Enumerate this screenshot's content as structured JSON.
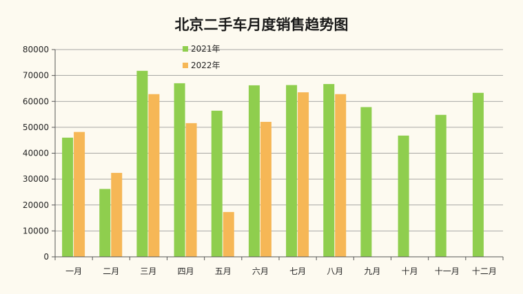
{
  "chart_data": {
    "type": "bar",
    "title": "北京二手车月度销售趋势图",
    "xlabel": "",
    "ylabel": "",
    "categories": [
      "一月",
      "二月",
      "三月",
      "四月",
      "五月",
      "六月",
      "七月",
      "八月",
      "九月",
      "十月",
      "十一月",
      "十二月"
    ],
    "series": [
      {
        "name": "2021年",
        "color": "#8fce4e",
        "values": [
          46000,
          26200,
          71800,
          67000,
          56400,
          66200,
          66300,
          66700,
          57800,
          46800,
          54800,
          63300
        ]
      },
      {
        "name": "2022年",
        "color": "#f6b756",
        "values": [
          48200,
          32400,
          62800,
          51600,
          17300,
          52100,
          63500,
          62800,
          null,
          null,
          null,
          null
        ]
      }
    ],
    "ylim": [
      0,
      80000
    ],
    "yticks": [
      0,
      10000,
      20000,
      30000,
      40000,
      50000,
      60000,
      70000,
      80000
    ],
    "grid": true,
    "legend_position": "top-left"
  }
}
